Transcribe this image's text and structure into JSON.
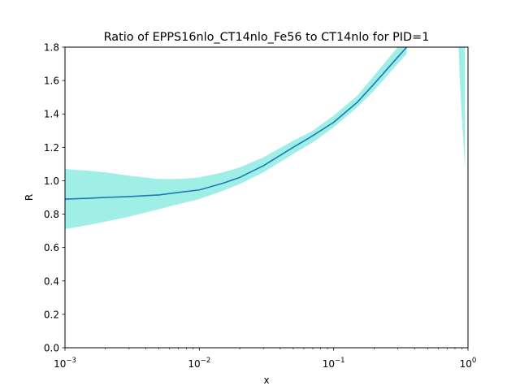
{
  "chart_data": {
    "type": "area",
    "title": "Ratio of EPPS16nlo_CT14nlo_Fe56 to CT14nlo for PID=1",
    "xlabel": "x",
    "ylabel": "R",
    "xscale": "log",
    "xlim": [
      0.001,
      1
    ],
    "ylim": [
      0,
      1.8
    ],
    "grid": false,
    "legend": "none",
    "x_ticks": [
      {
        "value": 0.001,
        "base": "10",
        "exp": "−3"
      },
      {
        "value": 0.01,
        "base": "10",
        "exp": "−2"
      },
      {
        "value": 0.1,
        "base": "10",
        "exp": "−1"
      },
      {
        "value": 1,
        "base": "10",
        "exp": "0"
      }
    ],
    "y_ticks": [
      "0.0",
      "0.2",
      "0.4",
      "0.6",
      "0.8",
      "1.0",
      "1.2",
      "1.4",
      "1.6",
      "1.8"
    ],
    "series": [
      {
        "color": "#1f77b4",
        "band_color": "#40e0d0",
        "x": [
          0.001,
          0.0015,
          0.002,
          0.003,
          0.005,
          0.007,
          0.01,
          0.015,
          0.02,
          0.03,
          0.05,
          0.07,
          0.1,
          0.15,
          0.2,
          0.3,
          0.35
        ],
        "y": [
          0.89,
          0.895,
          0.9,
          0.905,
          0.915,
          0.93,
          0.945,
          0.985,
          1.02,
          1.09,
          1.2,
          1.27,
          1.35,
          1.47,
          1.58,
          1.74,
          1.8
        ],
        "lower": [
          0.71,
          0.735,
          0.755,
          0.785,
          0.83,
          0.86,
          0.89,
          0.94,
          0.98,
          1.05,
          1.16,
          1.23,
          1.32,
          1.44,
          1.54,
          1.7,
          1.76
        ],
        "upper": [
          1.07,
          1.06,
          1.05,
          1.03,
          1.01,
          1.01,
          1.02,
          1.05,
          1.08,
          1.14,
          1.24,
          1.3,
          1.39,
          1.51,
          1.63,
          1.8,
          1.8
        ]
      }
    ],
    "extra_band": {
      "x": [
        0.85,
        0.87,
        0.9,
        0.93,
        0.95
      ],
      "lower": [
        1.8,
        1.6,
        1.38,
        1.2,
        1.08
      ],
      "upper": [
        1.8,
        1.8,
        1.8,
        1.8,
        1.8
      ]
    }
  }
}
